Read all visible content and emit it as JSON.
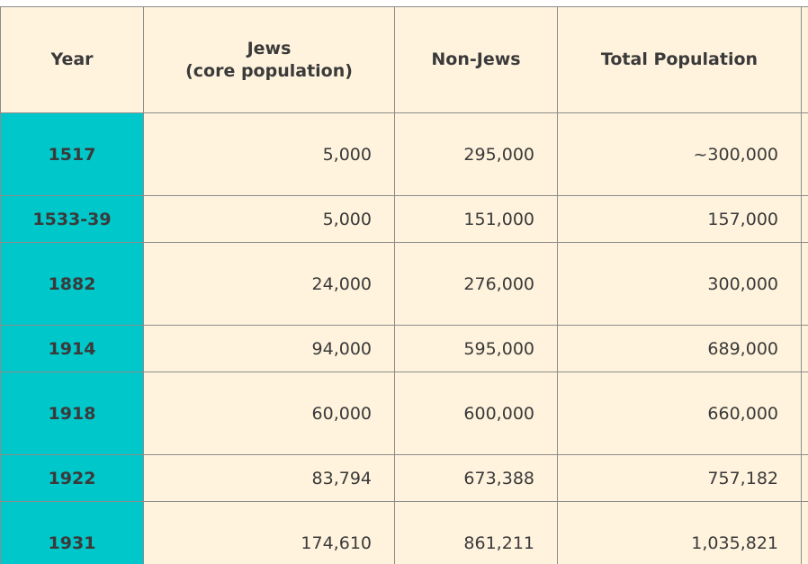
{
  "table": {
    "headers": {
      "year": "Year",
      "jews_line1": "Jews",
      "jews_line2": "(core population)",
      "non_jews": "Non-Jews",
      "total": "Total Population"
    },
    "rows": [
      {
        "year": "1517",
        "jews": "5,000",
        "non_jews": "295,000",
        "total": "~300,000"
      },
      {
        "year": "1533-39",
        "jews": "5,000",
        "non_jews": "151,000",
        "total": "157,000"
      },
      {
        "year": "1882",
        "jews": "24,000",
        "non_jews": "276,000",
        "total": "300,000"
      },
      {
        "year": "1914",
        "jews": "94,000",
        "non_jews": "595,000",
        "total": "689,000"
      },
      {
        "year": "1918",
        "jews": "60,000",
        "non_jews": "600,000",
        "total": "660,000"
      },
      {
        "year": "1922",
        "jews": "83,794",
        "non_jews": "673,388",
        "total": "757,182"
      },
      {
        "year": "1931",
        "jews": "174,610",
        "non_jews": "861,211",
        "total": "1,035,821"
      }
    ]
  },
  "colors": {
    "cell_background": "#fff3dd",
    "year_column": "#00c7ca",
    "border": "#8c8c8c",
    "text": "#3a3a3a"
  }
}
